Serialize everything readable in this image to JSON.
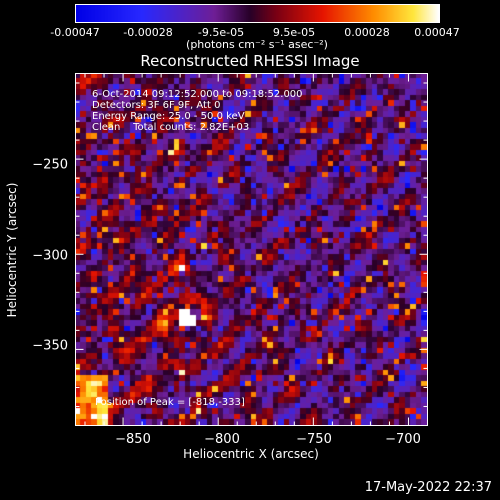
{
  "colorbar": {
    "ticks": [
      "-0.00047",
      "-0.00028",
      "-9.5e-05",
      "9.5e-05",
      "0.00028",
      "0.00047"
    ],
    "unit_label": "(photons cm⁻² s⁻¹ asec⁻²)",
    "range": [
      -0.00047,
      0.00047
    ]
  },
  "chart_data": {
    "type": "heatmap",
    "title": "Reconstructed RHESSI Image",
    "xlabel": "Heliocentric X (arcsec)",
    "ylabel": "Heliocentric Y (arcsec)",
    "xlim": [
      -875,
      -690
    ],
    "ylim": [
      -390,
      -205
    ],
    "xticks": [
      -850,
      -800,
      -750,
      -700
    ],
    "yticks": [
      -250,
      -300,
      -350
    ],
    "xtick_labels": [
      "−850",
      "−800",
      "−750",
      "−700"
    ],
    "ytick_labels": [
      "−250",
      "−300",
      "−350"
    ],
    "peak": {
      "x": -818,
      "y": -333
    }
  },
  "info": {
    "line1": "6-Oct-2014 09:12:52.000 to 09:18:52.000",
    "line2": "Detectors: 3F 6F 9F, Att 0",
    "line3": "Energy Range: 25.0 - 50.0 keV",
    "line4": "Clean    Total counts: 2.82E+03"
  },
  "peak_label": "Position of Peak = [-818,-333]",
  "timestamp": "17-May-2022 22:37"
}
